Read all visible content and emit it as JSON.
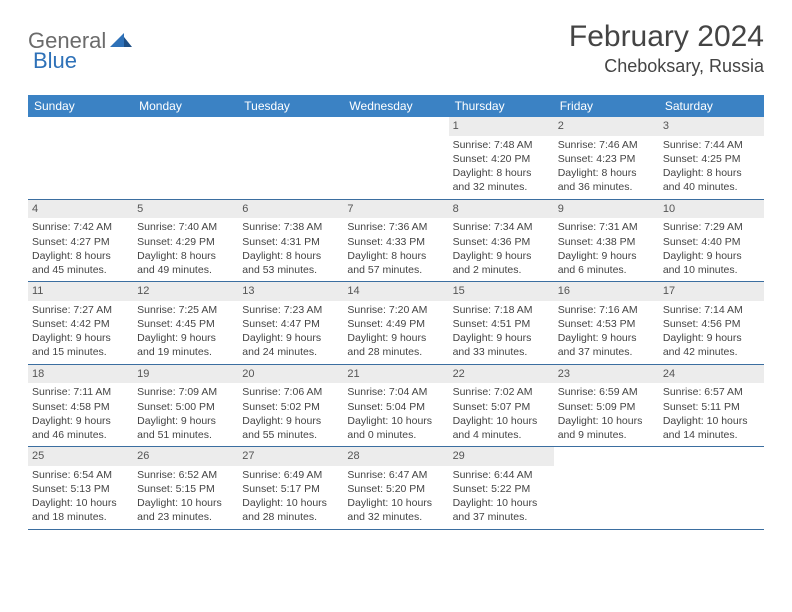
{
  "logo": {
    "general": "General",
    "blue": "Blue"
  },
  "title": "February 2024",
  "location": "Cheboksary, Russia",
  "colors": {
    "header_bg": "#3b82c4",
    "header_text": "#ffffff",
    "daynum_bg": "#ececec",
    "week_border": "#3b6ea0",
    "logo_blue": "#2e71b8",
    "logo_grey": "#6b6b6b"
  },
  "weekdays": [
    "Sunday",
    "Monday",
    "Tuesday",
    "Wednesday",
    "Thursday",
    "Friday",
    "Saturday"
  ],
  "weeks": [
    [
      {
        "n": "",
        "sr": "",
        "ss": "",
        "dl": ""
      },
      {
        "n": "",
        "sr": "",
        "ss": "",
        "dl": ""
      },
      {
        "n": "",
        "sr": "",
        "ss": "",
        "dl": ""
      },
      {
        "n": "",
        "sr": "",
        "ss": "",
        "dl": ""
      },
      {
        "n": "1",
        "sr": "Sunrise: 7:48 AM",
        "ss": "Sunset: 4:20 PM",
        "dl": "Daylight: 8 hours and 32 minutes."
      },
      {
        "n": "2",
        "sr": "Sunrise: 7:46 AM",
        "ss": "Sunset: 4:23 PM",
        "dl": "Daylight: 8 hours and 36 minutes."
      },
      {
        "n": "3",
        "sr": "Sunrise: 7:44 AM",
        "ss": "Sunset: 4:25 PM",
        "dl": "Daylight: 8 hours and 40 minutes."
      }
    ],
    [
      {
        "n": "4",
        "sr": "Sunrise: 7:42 AM",
        "ss": "Sunset: 4:27 PM",
        "dl": "Daylight: 8 hours and 45 minutes."
      },
      {
        "n": "5",
        "sr": "Sunrise: 7:40 AM",
        "ss": "Sunset: 4:29 PM",
        "dl": "Daylight: 8 hours and 49 minutes."
      },
      {
        "n": "6",
        "sr": "Sunrise: 7:38 AM",
        "ss": "Sunset: 4:31 PM",
        "dl": "Daylight: 8 hours and 53 minutes."
      },
      {
        "n": "7",
        "sr": "Sunrise: 7:36 AM",
        "ss": "Sunset: 4:33 PM",
        "dl": "Daylight: 8 hours and 57 minutes."
      },
      {
        "n": "8",
        "sr": "Sunrise: 7:34 AM",
        "ss": "Sunset: 4:36 PM",
        "dl": "Daylight: 9 hours and 2 minutes."
      },
      {
        "n": "9",
        "sr": "Sunrise: 7:31 AM",
        "ss": "Sunset: 4:38 PM",
        "dl": "Daylight: 9 hours and 6 minutes."
      },
      {
        "n": "10",
        "sr": "Sunrise: 7:29 AM",
        "ss": "Sunset: 4:40 PM",
        "dl": "Daylight: 9 hours and 10 minutes."
      }
    ],
    [
      {
        "n": "11",
        "sr": "Sunrise: 7:27 AM",
        "ss": "Sunset: 4:42 PM",
        "dl": "Daylight: 9 hours and 15 minutes."
      },
      {
        "n": "12",
        "sr": "Sunrise: 7:25 AM",
        "ss": "Sunset: 4:45 PM",
        "dl": "Daylight: 9 hours and 19 minutes."
      },
      {
        "n": "13",
        "sr": "Sunrise: 7:23 AM",
        "ss": "Sunset: 4:47 PM",
        "dl": "Daylight: 9 hours and 24 minutes."
      },
      {
        "n": "14",
        "sr": "Sunrise: 7:20 AM",
        "ss": "Sunset: 4:49 PM",
        "dl": "Daylight: 9 hours and 28 minutes."
      },
      {
        "n": "15",
        "sr": "Sunrise: 7:18 AM",
        "ss": "Sunset: 4:51 PM",
        "dl": "Daylight: 9 hours and 33 minutes."
      },
      {
        "n": "16",
        "sr": "Sunrise: 7:16 AM",
        "ss": "Sunset: 4:53 PM",
        "dl": "Daylight: 9 hours and 37 minutes."
      },
      {
        "n": "17",
        "sr": "Sunrise: 7:14 AM",
        "ss": "Sunset: 4:56 PM",
        "dl": "Daylight: 9 hours and 42 minutes."
      }
    ],
    [
      {
        "n": "18",
        "sr": "Sunrise: 7:11 AM",
        "ss": "Sunset: 4:58 PM",
        "dl": "Daylight: 9 hours and 46 minutes."
      },
      {
        "n": "19",
        "sr": "Sunrise: 7:09 AM",
        "ss": "Sunset: 5:00 PM",
        "dl": "Daylight: 9 hours and 51 minutes."
      },
      {
        "n": "20",
        "sr": "Sunrise: 7:06 AM",
        "ss": "Sunset: 5:02 PM",
        "dl": "Daylight: 9 hours and 55 minutes."
      },
      {
        "n": "21",
        "sr": "Sunrise: 7:04 AM",
        "ss": "Sunset: 5:04 PM",
        "dl": "Daylight: 10 hours and 0 minutes."
      },
      {
        "n": "22",
        "sr": "Sunrise: 7:02 AM",
        "ss": "Sunset: 5:07 PM",
        "dl": "Daylight: 10 hours and 4 minutes."
      },
      {
        "n": "23",
        "sr": "Sunrise: 6:59 AM",
        "ss": "Sunset: 5:09 PM",
        "dl": "Daylight: 10 hours and 9 minutes."
      },
      {
        "n": "24",
        "sr": "Sunrise: 6:57 AM",
        "ss": "Sunset: 5:11 PM",
        "dl": "Daylight: 10 hours and 14 minutes."
      }
    ],
    [
      {
        "n": "25",
        "sr": "Sunrise: 6:54 AM",
        "ss": "Sunset: 5:13 PM",
        "dl": "Daylight: 10 hours and 18 minutes."
      },
      {
        "n": "26",
        "sr": "Sunrise: 6:52 AM",
        "ss": "Sunset: 5:15 PM",
        "dl": "Daylight: 10 hours and 23 minutes."
      },
      {
        "n": "27",
        "sr": "Sunrise: 6:49 AM",
        "ss": "Sunset: 5:17 PM",
        "dl": "Daylight: 10 hours and 28 minutes."
      },
      {
        "n": "28",
        "sr": "Sunrise: 6:47 AM",
        "ss": "Sunset: 5:20 PM",
        "dl": "Daylight: 10 hours and 32 minutes."
      },
      {
        "n": "29",
        "sr": "Sunrise: 6:44 AM",
        "ss": "Sunset: 5:22 PM",
        "dl": "Daylight: 10 hours and 37 minutes."
      },
      {
        "n": "",
        "sr": "",
        "ss": "",
        "dl": ""
      },
      {
        "n": "",
        "sr": "",
        "ss": "",
        "dl": ""
      }
    ]
  ]
}
